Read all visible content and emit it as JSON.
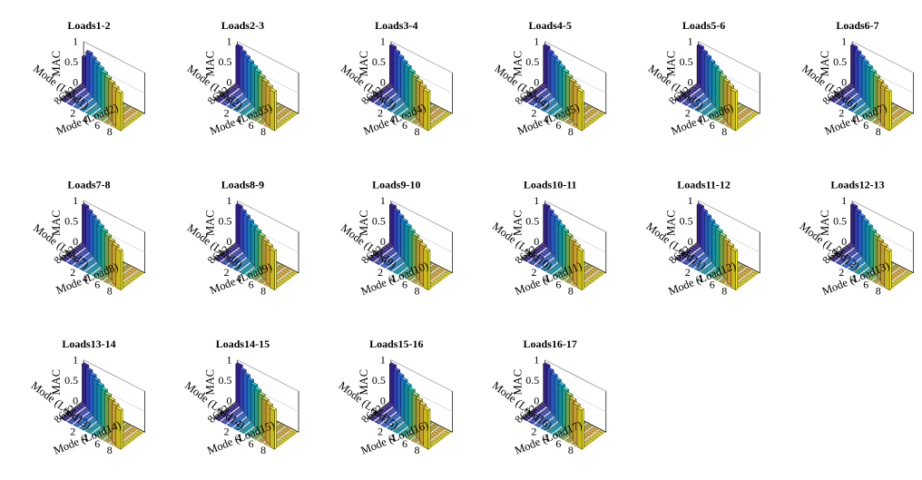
{
  "figure": {
    "zlabel": "MAC",
    "zticks": [
      "0",
      "0.5",
      "1"
    ],
    "mode_ticks": [
      "2",
      "4",
      "6",
      "8"
    ],
    "bar_colors": [
      "#3e26a8",
      "#3a4cd8",
      "#2e6ff0",
      "#1e93de",
      "#10b0c8",
      "#2dc3a0",
      "#8ec657",
      "#d8ba38",
      "#fcc43c",
      "#f9ea23"
    ]
  },
  "chart_data": [
    {
      "type": "bar3",
      "title": "Loads1-2",
      "xlabel": "Mode (Load1)",
      "ylabel": "Mode (Load2)",
      "zlabel": "MAC",
      "zlim": [
        0,
        1
      ],
      "zticks": [
        0,
        0.5,
        1
      ],
      "modes": [
        1,
        2,
        3,
        4,
        5,
        6,
        7,
        8,
        9,
        10
      ],
      "diagonal_mac": [
        0.68,
        0.92,
        0.92,
        0.92,
        0.92,
        0.92,
        0.92,
        0.92,
        0.92,
        0.92
      ]
    },
    {
      "type": "bar3",
      "title": "Loads2-3",
      "xlabel": "Mode (Load2)",
      "ylabel": "Mode (Load3)",
      "zlabel": "MAC",
      "zlim": [
        0,
        1
      ],
      "zticks": [
        0,
        0.5,
        1
      ],
      "modes": [
        1,
        2,
        3,
        4,
        5,
        6,
        7,
        8,
        9,
        10
      ],
      "diagonal_mac": [
        0.95,
        0.95,
        0.95,
        0.95,
        0.95,
        0.95,
        0.95,
        0.95,
        0.95,
        0.95
      ]
    },
    {
      "type": "bar3",
      "title": "Loads3-4",
      "xlabel": "Mode (Load3)",
      "ylabel": "Mode (Load4)",
      "zlabel": "MAC",
      "zlim": [
        0,
        1
      ],
      "zticks": [
        0,
        0.5,
        1
      ],
      "modes": [
        1,
        2,
        3,
        4,
        5,
        6,
        7,
        8,
        9,
        10
      ],
      "diagonal_mac": [
        0.95,
        0.95,
        0.95,
        0.95,
        0.95,
        0.95,
        0.95,
        0.95,
        0.95,
        0.95
      ]
    },
    {
      "type": "bar3",
      "title": "Loads4-5",
      "xlabel": "Mode (Load4)",
      "ylabel": "Mode (Load5)",
      "zlabel": "MAC",
      "zlim": [
        0,
        1
      ],
      "zticks": [
        0,
        0.5,
        1
      ],
      "modes": [
        1,
        2,
        3,
        4,
        5,
        6,
        7,
        8,
        9,
        10
      ],
      "diagonal_mac": [
        0.95,
        0.95,
        0.95,
        0.95,
        0.95,
        0.95,
        0.95,
        0.95,
        0.95,
        0.95
      ]
    },
    {
      "type": "bar3",
      "title": "Loads5-6",
      "xlabel": "Mode (Load5)",
      "ylabel": "Mode (Load6)",
      "zlabel": "MAC",
      "zlim": [
        0,
        1
      ],
      "zticks": [
        0,
        0.5,
        1
      ],
      "modes": [
        1,
        2,
        3,
        4,
        5,
        6,
        7,
        8,
        9,
        10
      ],
      "diagonal_mac": [
        0.95,
        0.95,
        0.95,
        0.95,
        0.95,
        0.95,
        0.95,
        0.95,
        0.95,
        0.95
      ]
    },
    {
      "type": "bar3",
      "title": "Loads6-7",
      "xlabel": "Mode (Load6)",
      "ylabel": "Mode (Load7)",
      "zlabel": "MAC",
      "zlim": [
        0,
        1
      ],
      "zticks": [
        0,
        0.5,
        1
      ],
      "modes": [
        1,
        2,
        3,
        4,
        5,
        6,
        7,
        8,
        9,
        10
      ],
      "diagonal_mac": [
        0.95,
        0.95,
        0.95,
        0.95,
        0.95,
        0.95,
        0.95,
        0.95,
        0.95,
        0.95
      ]
    },
    {
      "type": "bar3",
      "title": "Loads7-8",
      "xlabel": "Mode (Load7)",
      "ylabel": "Mode (Load8)",
      "zlabel": "MAC",
      "zlim": [
        0,
        1
      ],
      "zticks": [
        0,
        0.5,
        1
      ],
      "modes": [
        1,
        2,
        3,
        4,
        5,
        6,
        7,
        8,
        9,
        10
      ],
      "diagonal_mac": [
        0.95,
        0.95,
        0.95,
        0.95,
        0.95,
        0.95,
        0.95,
        0.95,
        0.95,
        0.95
      ]
    },
    {
      "type": "bar3",
      "title": "Loads8-9",
      "xlabel": "Mode (Load8)",
      "ylabel": "Mode (Load9)",
      "zlabel": "MAC",
      "zlim": [
        0,
        1
      ],
      "zticks": [
        0,
        0.5,
        1
      ],
      "modes": [
        1,
        2,
        3,
        4,
        5,
        6,
        7,
        8,
        9,
        10
      ],
      "diagonal_mac": [
        0.95,
        0.95,
        0.95,
        0.95,
        0.95,
        0.95,
        0.95,
        0.95,
        0.95,
        0.95
      ]
    },
    {
      "type": "bar3",
      "title": "Loads9-10",
      "xlabel": "Mode (Load9)",
      "ylabel": "Mode (Load10)",
      "zlabel": "MAC",
      "zlim": [
        0,
        1
      ],
      "zticks": [
        0,
        0.5,
        1
      ],
      "modes": [
        1,
        2,
        3,
        4,
        5,
        6,
        7,
        8,
        9,
        10
      ],
      "diagonal_mac": [
        0.95,
        0.95,
        0.95,
        0.95,
        0.95,
        0.95,
        0.95,
        0.95,
        0.95,
        0.95
      ]
    },
    {
      "type": "bar3",
      "title": "Loads10-11",
      "xlabel": "Mode (Load10)",
      "ylabel": "Mode (Load11)",
      "zlabel": "MAC",
      "zlim": [
        0,
        1
      ],
      "zticks": [
        0,
        0.5,
        1
      ],
      "modes": [
        1,
        2,
        3,
        4,
        5,
        6,
        7,
        8,
        9,
        10
      ],
      "diagonal_mac": [
        0.95,
        0.95,
        0.95,
        0.95,
        0.95,
        0.95,
        0.95,
        0.95,
        0.95,
        0.95
      ]
    },
    {
      "type": "bar3",
      "title": "Loads11-12",
      "xlabel": "Mode (Load11)",
      "ylabel": "Mode (Load12)",
      "zlabel": "MAC",
      "zlim": [
        0,
        1
      ],
      "zticks": [
        0,
        0.5,
        1
      ],
      "modes": [
        1,
        2,
        3,
        4,
        5,
        6,
        7,
        8,
        9,
        10
      ],
      "diagonal_mac": [
        0.95,
        0.95,
        0.95,
        0.95,
        0.95,
        0.95,
        0.95,
        0.95,
        0.95,
        0.95
      ]
    },
    {
      "type": "bar3",
      "title": "Loads12-13",
      "xlabel": "Mode (Load12)",
      "ylabel": "Mode (Load13)",
      "zlabel": "MAC",
      "zlim": [
        0,
        1
      ],
      "zticks": [
        0,
        0.5,
        1
      ],
      "modes": [
        1,
        2,
        3,
        4,
        5,
        6,
        7,
        8,
        9,
        10
      ],
      "diagonal_mac": [
        0.95,
        0.95,
        0.95,
        0.95,
        0.95,
        0.95,
        0.95,
        0.95,
        0.95,
        0.95
      ]
    },
    {
      "type": "bar3",
      "title": "Loads13-14",
      "xlabel": "Mode (Load13)",
      "ylabel": "Mode (Load14)",
      "zlabel": "MAC",
      "zlim": [
        0,
        1
      ],
      "zticks": [
        0,
        0.5,
        1
      ],
      "modes": [
        1,
        2,
        3,
        4,
        5,
        6,
        7,
        8,
        9,
        10
      ],
      "diagonal_mac": [
        0.95,
        0.95,
        0.95,
        0.95,
        0.95,
        0.95,
        0.95,
        0.95,
        0.95,
        0.95
      ]
    },
    {
      "type": "bar3",
      "title": "Loads14-15",
      "xlabel": "Mode (Load14)",
      "ylabel": "Mode (Load15)",
      "zlabel": "MAC",
      "zlim": [
        0,
        1
      ],
      "zticks": [
        0,
        0.5,
        1
      ],
      "modes": [
        1,
        2,
        3,
        4,
        5,
        6,
        7,
        8,
        9,
        10
      ],
      "diagonal_mac": [
        0.95,
        0.95,
        0.95,
        0.95,
        0.95,
        0.95,
        0.95,
        0.95,
        0.95,
        0.95
      ]
    },
    {
      "type": "bar3",
      "title": "Loads15-16",
      "xlabel": "Mode (Load15)",
      "ylabel": "Mode (Load16)",
      "zlabel": "MAC",
      "zlim": [
        0,
        1
      ],
      "zticks": [
        0,
        0.5,
        1
      ],
      "modes": [
        1,
        2,
        3,
        4,
        5,
        6,
        7,
        8,
        9,
        10
      ],
      "diagonal_mac": [
        0.95,
        0.95,
        0.95,
        0.95,
        0.95,
        0.95,
        0.95,
        0.95,
        0.95,
        0.95
      ]
    },
    {
      "type": "bar3",
      "title": "Loads16-17",
      "xlabel": "Mode (Load16)",
      "ylabel": "Mode (Load17)",
      "zlabel": "MAC",
      "zlim": [
        0,
        1
      ],
      "zticks": [
        0,
        0.5,
        1
      ],
      "modes": [
        1,
        2,
        3,
        4,
        5,
        6,
        7,
        8,
        9,
        10
      ],
      "diagonal_mac": [
        0.95,
        0.95,
        0.95,
        0.95,
        0.95,
        0.95,
        0.95,
        0.95,
        0.95,
        0.95
      ]
    }
  ]
}
